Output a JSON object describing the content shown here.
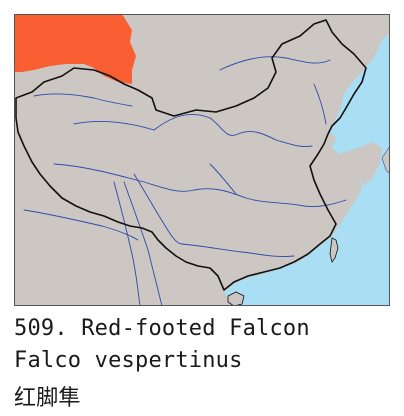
{
  "species": {
    "number": "509.",
    "common_name": "Red-footed Falcon",
    "scientific_name": "Falco vespertinus",
    "chinese_name": "红脚隼"
  },
  "map": {
    "colors": {
      "sea": "#a9def5",
      "land": "#ccc7c3",
      "range": "#f95f32",
      "border": "#111111",
      "river": "#2e4aa8",
      "frame": "#555555"
    }
  }
}
